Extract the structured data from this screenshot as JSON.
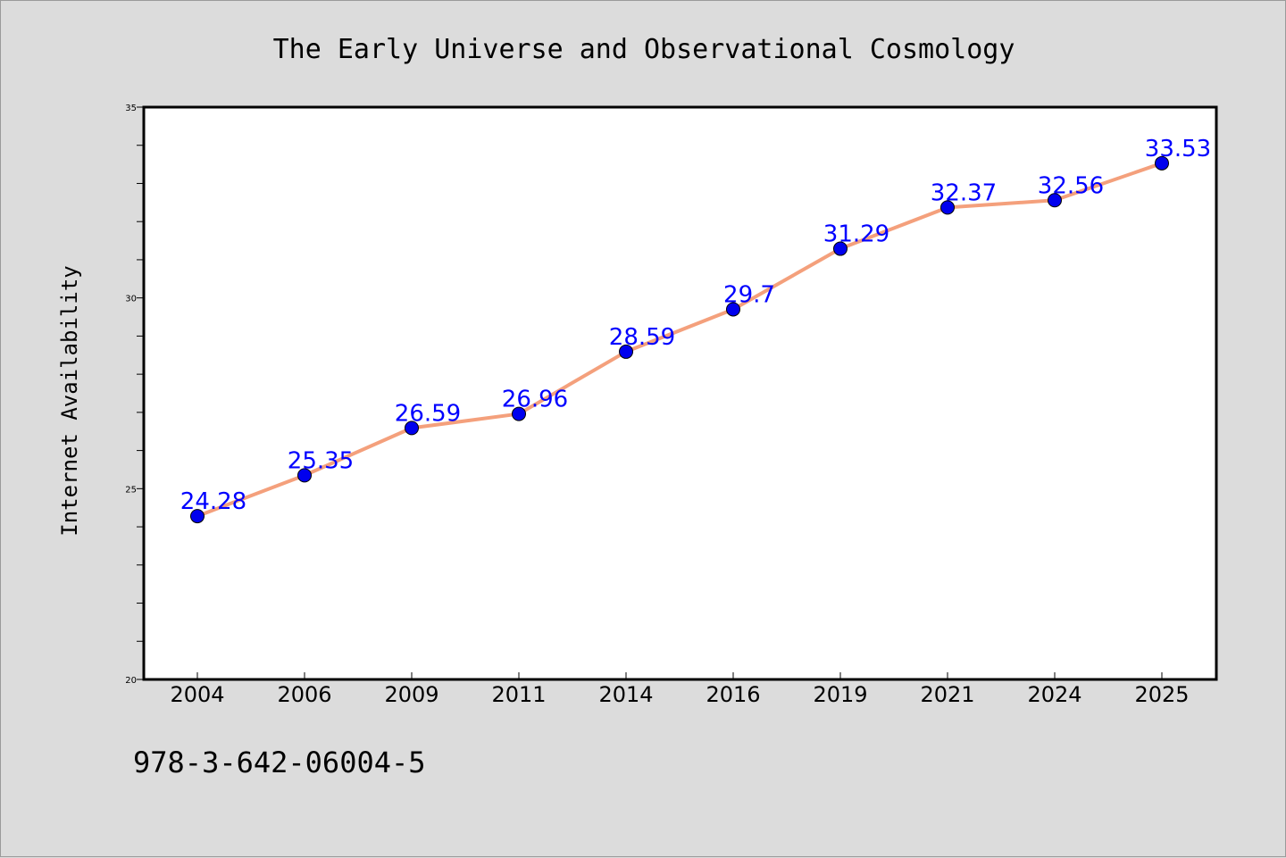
{
  "chart_data": {
    "type": "line",
    "title": "The Early Universe and Observational Cosmology",
    "xlabel": "",
    "ylabel": "Internet Availability",
    "categories": [
      "2004",
      "2006",
      "2009",
      "2011",
      "2014",
      "2016",
      "2019",
      "2021",
      "2024",
      "2025"
    ],
    "series": [
      {
        "values": [
          24.28,
          25.35,
          26.59,
          26.96,
          28.59,
          29.7,
          31.29,
          32.37,
          32.56,
          33.53
        ],
        "labels": [
          "24.28",
          "25.35",
          "26.59",
          "26.96",
          "28.59",
          "29.7",
          "31.29",
          "32.37",
          "32.56",
          "33.53"
        ],
        "line_color": "#f4a07c",
        "marker_color": "#0000ee",
        "label_color": "#0000ff"
      }
    ],
    "ylim": [
      20,
      35
    ],
    "yticks": [
      "20",
      "25",
      "30",
      "35"
    ],
    "grid": false,
    "legend": "none"
  },
  "footer": {
    "isbn": "978-3-642-06004-5"
  }
}
